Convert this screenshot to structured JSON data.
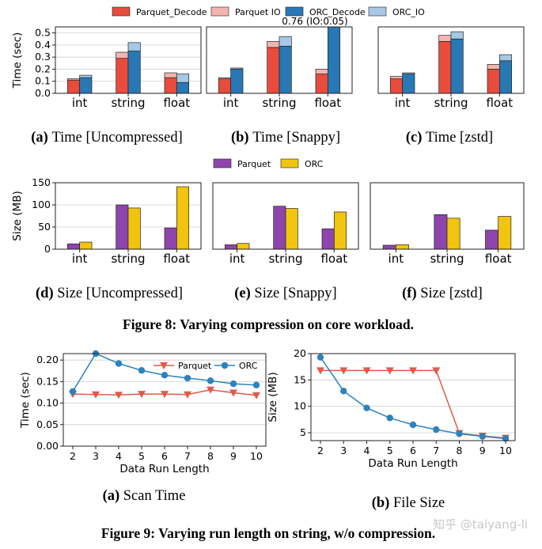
{
  "colors": {
    "parquet_decode": "#e74c3c",
    "parquet_io": "#f4b4b0",
    "orc_decode": "#2878b5",
    "orc_io": "#a6c8e4",
    "parquet": "#8e44ad",
    "orc": "#f1c40f",
    "line_parquet": "#e05a4a",
    "line_orc": "#2b83ba"
  },
  "figure8": {
    "caption": "Figure 8: Varying compression on core workload.",
    "time_legend": [
      "Parquet_Decode",
      "Parquet IO",
      "ORC_Decode",
      "ORC_IO"
    ],
    "size_legend": [
      "Parquet",
      "ORC"
    ]
  },
  "figure9": {
    "caption": "Figure 9: Varying run length on string, w/o compression."
  },
  "watermark": "知乎 @taiyang-li",
  "chart_data": [
    {
      "id": "time-uncompressed",
      "type": "bar",
      "stacked": true,
      "caption_label": "(a)",
      "caption_text": "Time [Uncompressed]",
      "categories": [
        "int",
        "string",
        "float"
      ],
      "ylabel": "Time (sec)",
      "ylim": [
        0,
        0.55
      ],
      "yticks": [
        "0.0",
        "0.1",
        "0.2",
        "0.3",
        "0.4",
        "0.5"
      ],
      "series": [
        {
          "name": "Parquet",
          "decode": [
            0.11,
            0.29,
            0.13
          ],
          "io": [
            0.01,
            0.05,
            0.04
          ]
        },
        {
          "name": "ORC",
          "decode": [
            0.13,
            0.35,
            0.09
          ],
          "io": [
            0.02,
            0.07,
            0.07
          ]
        }
      ]
    },
    {
      "id": "time-snappy",
      "type": "bar",
      "stacked": true,
      "caption_label": "(b)",
      "caption_text": "Time [Snappy]",
      "categories": [
        "int",
        "string",
        "float"
      ],
      "ylabel": "",
      "ylim": [
        0,
        0.55
      ],
      "yticks": [],
      "annotation": "0.76 (IO:0.05)",
      "series": [
        {
          "name": "Parquet",
          "decode": [
            0.12,
            0.38,
            0.16
          ],
          "io": [
            0.01,
            0.05,
            0.04
          ]
        },
        {
          "name": "ORC",
          "decode": [
            0.2,
            0.39,
            0.71
          ],
          "io": [
            0.01,
            0.08,
            0.05
          ]
        }
      ]
    },
    {
      "id": "time-zstd",
      "type": "bar",
      "stacked": true,
      "caption_label": "(c)",
      "caption_text": "Time [zstd]",
      "categories": [
        "int",
        "string",
        "float"
      ],
      "ylabel": "",
      "ylim": [
        0,
        0.55
      ],
      "yticks": [],
      "series": [
        {
          "name": "Parquet",
          "decode": [
            0.12,
            0.43,
            0.2
          ],
          "io": [
            0.02,
            0.05,
            0.04
          ]
        },
        {
          "name": "ORC",
          "decode": [
            0.16,
            0.45,
            0.27
          ],
          "io": [
            0.01,
            0.06,
            0.05
          ]
        }
      ]
    },
    {
      "id": "size-uncompressed",
      "type": "bar",
      "stacked": false,
      "caption_label": "(d)",
      "caption_text": "Size [Uncompressed]",
      "categories": [
        "int",
        "string",
        "float"
      ],
      "ylabel": "Size (MB)",
      "ylim": [
        0,
        150
      ],
      "yticks": [
        "0",
        "50",
        "100",
        "150"
      ],
      "series": [
        {
          "name": "Parquet",
          "values": [
            12,
            100,
            48
          ]
        },
        {
          "name": "ORC",
          "values": [
            16,
            93,
            141
          ]
        }
      ]
    },
    {
      "id": "size-snappy",
      "type": "bar",
      "stacked": false,
      "caption_label": "(e)",
      "caption_text": "Size [Snappy]",
      "categories": [
        "int",
        "string",
        "float"
      ],
      "ylabel": "",
      "ylim": [
        0,
        150
      ],
      "yticks": [],
      "series": [
        {
          "name": "Parquet",
          "values": [
            10,
            97,
            46
          ]
        },
        {
          "name": "ORC",
          "values": [
            13,
            92,
            84
          ]
        }
      ]
    },
    {
      "id": "size-zstd",
      "type": "bar",
      "stacked": false,
      "caption_label": "(f)",
      "caption_text": "Size [zstd]",
      "categories": [
        "int",
        "string",
        "float"
      ],
      "ylabel": "",
      "ylim": [
        0,
        150
      ],
      "yticks": [],
      "series": [
        {
          "name": "Parquet",
          "values": [
            9,
            78,
            43
          ]
        },
        {
          "name": "ORC",
          "values": [
            10,
            70,
            74
          ]
        }
      ]
    },
    {
      "id": "scan-time",
      "type": "line",
      "caption_label": "(a)",
      "caption_text": "Scan Time",
      "x": [
        2,
        3,
        4,
        5,
        6,
        7,
        8,
        9,
        10
      ],
      "xlabel": "Data Run Length",
      "ylabel": "Time (sec)",
      "ylim": [
        0,
        0.215
      ],
      "yticks": [
        "0.00",
        "0.05",
        "0.10",
        "0.15",
        "0.20"
      ],
      "series": [
        {
          "name": "Parquet",
          "marker": "triangle-down",
          "values": [
            0.121,
            0.12,
            0.119,
            0.121,
            0.121,
            0.12,
            0.131,
            0.124,
            0.118
          ]
        },
        {
          "name": "ORC",
          "marker": "circle",
          "values": [
            0.127,
            0.215,
            0.192,
            0.176,
            0.165,
            0.158,
            0.152,
            0.145,
            0.142
          ]
        }
      ]
    },
    {
      "id": "file-size",
      "type": "line",
      "caption_label": "(b)",
      "caption_text": "File Size",
      "x": [
        2,
        3,
        4,
        5,
        6,
        7,
        8,
        9,
        10
      ],
      "xlabel": "Data Run Length",
      "ylabel": "Size (MB)",
      "ylim": [
        3.5,
        20
      ],
      "yticks": [
        "5",
        "10",
        "15",
        "20"
      ],
      "series": [
        {
          "name": "Parquet",
          "marker": "triangle-down",
          "values": [
            16.8,
            16.8,
            16.8,
            16.8,
            16.8,
            16.8,
            4.9,
            4.4,
            4.0
          ]
        },
        {
          "name": "ORC",
          "marker": "circle",
          "values": [
            19.3,
            12.9,
            9.7,
            7.8,
            6.5,
            5.6,
            4.8,
            4.3,
            3.9
          ]
        }
      ]
    }
  ]
}
